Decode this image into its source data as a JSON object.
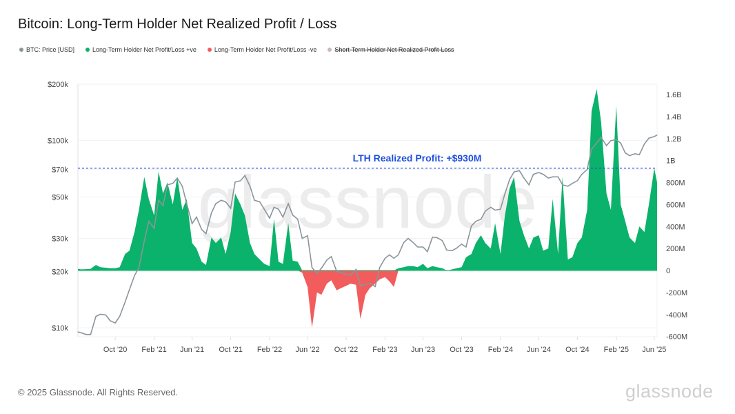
{
  "title": "Bitcoin: Long-Term Holder Net Realized Profit / Loss",
  "legend": [
    {
      "label": "BTC: Price [USD]",
      "color": "#8a959b",
      "disabled": false
    },
    {
      "label": "Long-Term Holder Net Profit/Loss +ve",
      "color": "#0bb26b",
      "disabled": false
    },
    {
      "label": "Long-Term Holder Net Profit/Loss -ve",
      "color": "#f25c5c",
      "disabled": false
    },
    {
      "label": "Short-Term Holder Net Realized Profit-Loss",
      "color": "#c9b8c0",
      "disabled": true
    }
  ],
  "footer": "© 2025 Glassnode. All Rights Reserved.",
  "logo": "glassnode",
  "watermark": "glassnode",
  "chart_data": {
    "type": "line+area",
    "title": "Bitcoin: Long-Term Holder Net Realized Profit / Loss",
    "annotation": {
      "text": "LTH Realized Profit: +$930M",
      "value": 930000000,
      "color": "#1f4fe0"
    },
    "x_ticks": [
      "Oct '20",
      "Feb '21",
      "Jun '21",
      "Oct '21",
      "Feb '22",
      "Jun '22",
      "Oct '22",
      "Feb '23",
      "Jun '23",
      "Oct '23",
      "Feb '24",
      "Jun '24",
      "Oct '24",
      "Feb '25",
      "Jun '25"
    ],
    "x_tick_dates": [
      "2020-10-01",
      "2021-02-01",
      "2021-06-01",
      "2021-10-01",
      "2022-02-01",
      "2022-06-01",
      "2022-10-01",
      "2023-02-01",
      "2023-06-01",
      "2023-10-01",
      "2024-02-01",
      "2024-06-01",
      "2024-10-01",
      "2025-02-01",
      "2025-06-01"
    ],
    "xlim": [
      "2020-06-05",
      "2025-06-10"
    ],
    "y_left": {
      "scale": "log",
      "ylim": [
        9500,
        200000
      ],
      "ticks": [
        10000,
        20000,
        30000,
        50000,
        70000,
        100000,
        200000
      ],
      "tick_labels": [
        "$10k",
        "$20k",
        "$30k",
        "$50k",
        "$70k",
        "$100k",
        "$200k"
      ]
    },
    "y_right": {
      "scale": "linear",
      "ylim": [
        -600000000,
        1650000000
      ],
      "ticks": [
        -600000000,
        -400000000,
        -200000000,
        0,
        200000000,
        400000000,
        600000000,
        800000000,
        1000000000,
        1200000000,
        1400000000,
        1600000000
      ],
      "tick_labels": [
        "-600M",
        "-400M",
        "-200M",
        "0",
        "200M",
        "400M",
        "600M",
        "800M",
        "1B",
        "1.2B",
        "1.4B",
        "1.6B"
      ]
    },
    "grid": true,
    "dates": [
      "2020-06-05",
      "2020-06-15",
      "2020-07-01",
      "2020-07-15",
      "2020-08-01",
      "2020-08-15",
      "2020-09-01",
      "2020-09-15",
      "2020-10-01",
      "2020-10-15",
      "2020-11-01",
      "2020-11-15",
      "2020-12-01",
      "2020-12-15",
      "2021-01-01",
      "2021-01-15",
      "2021-02-01",
      "2021-02-15",
      "2021-03-01",
      "2021-03-15",
      "2021-04-01",
      "2021-04-15",
      "2021-05-01",
      "2021-05-15",
      "2021-06-01",
      "2021-06-15",
      "2021-07-01",
      "2021-07-15",
      "2021-08-01",
      "2021-08-15",
      "2021-09-01",
      "2021-09-15",
      "2021-10-01",
      "2021-10-15",
      "2021-11-01",
      "2021-11-15",
      "2021-12-01",
      "2021-12-15",
      "2022-01-01",
      "2022-01-15",
      "2022-02-01",
      "2022-02-15",
      "2022-03-01",
      "2022-03-15",
      "2022-04-01",
      "2022-04-15",
      "2022-05-01",
      "2022-05-15",
      "2022-06-01",
      "2022-06-15",
      "2022-07-01",
      "2022-07-15",
      "2022-08-01",
      "2022-08-15",
      "2022-09-01",
      "2022-09-15",
      "2022-10-01",
      "2022-10-15",
      "2022-11-01",
      "2022-11-15",
      "2022-12-01",
      "2022-12-15",
      "2023-01-01",
      "2023-01-15",
      "2023-02-01",
      "2023-02-15",
      "2023-03-01",
      "2023-03-15",
      "2023-04-01",
      "2023-04-15",
      "2023-05-01",
      "2023-05-15",
      "2023-06-01",
      "2023-06-15",
      "2023-07-01",
      "2023-07-15",
      "2023-08-01",
      "2023-08-15",
      "2023-09-01",
      "2023-09-15",
      "2023-10-01",
      "2023-10-15",
      "2023-11-01",
      "2023-11-15",
      "2023-12-01",
      "2023-12-15",
      "2024-01-01",
      "2024-01-15",
      "2024-02-01",
      "2024-02-15",
      "2024-03-01",
      "2024-03-15",
      "2024-04-01",
      "2024-04-15",
      "2024-05-01",
      "2024-05-15",
      "2024-06-01",
      "2024-06-15",
      "2024-07-01",
      "2024-07-15",
      "2024-08-01",
      "2024-08-15",
      "2024-09-01",
      "2024-09-15",
      "2024-10-01",
      "2024-10-15",
      "2024-11-01",
      "2024-11-15",
      "2024-12-01",
      "2024-12-15",
      "2025-01-01",
      "2025-01-15",
      "2025-02-01",
      "2025-02-15",
      "2025-03-01",
      "2025-03-15",
      "2025-04-01",
      "2025-04-15",
      "2025-05-01",
      "2025-05-15",
      "2025-06-01",
      "2025-06-10"
    ],
    "series": [
      {
        "name": "BTC: Price [USD]",
        "axis": "left",
        "color": "#8a959b",
        "values": [
          9500,
          9400,
          9200,
          9200,
          11500,
          11800,
          11700,
          10900,
          10600,
          11500,
          13700,
          16000,
          19000,
          21000,
          29000,
          37000,
          34000,
          48000,
          45000,
          58000,
          59000,
          63000,
          57000,
          46000,
          36000,
          39000,
          33500,
          31800,
          41000,
          46000,
          48000,
          47000,
          43500,
          60000,
          61000,
          65000,
          57000,
          48000,
          47000,
          43000,
          38500,
          44000,
          43000,
          39000,
          46000,
          40000,
          38000,
          30000,
          31000,
          21000,
          19500,
          20800,
          23000,
          24000,
          20000,
          19700,
          19300,
          19100,
          20500,
          16800,
          17000,
          17300,
          16600,
          21000,
          23500,
          24500,
          23500,
          24500,
          28500,
          30000,
          28500,
          27000,
          27000,
          25500,
          30500,
          30300,
          29200,
          26000,
          25800,
          26600,
          28000,
          27000,
          35000,
          37000,
          38000,
          42000,
          44000,
          42500,
          43000,
          52000,
          62000,
          68000,
          69000,
          63000,
          58000,
          66000,
          67500,
          66000,
          63000,
          64000,
          64000,
          58000,
          57000,
          59000,
          61000,
          66000,
          70000,
          90000,
          97000,
          104000,
          94000,
          100000,
          101000,
          97000,
          86000,
          83000,
          85000,
          84000,
          96000,
          103000,
          105000,
          107000
        ]
      },
      {
        "name": "Long-Term Holder Net Profit/Loss",
        "axis": "right",
        "unit": "USD",
        "color_pos": "#0bb26b",
        "color_neg": "#f25c5c",
        "values": [
          15000000,
          10000000,
          12000000,
          15000000,
          50000000,
          30000000,
          25000000,
          20000000,
          20000000,
          30000000,
          150000000,
          180000000,
          350000000,
          550000000,
          850000000,
          650000000,
          500000000,
          900000000,
          700000000,
          800000000,
          600000000,
          850000000,
          550000000,
          650000000,
          250000000,
          200000000,
          80000000,
          50000000,
          300000000,
          250000000,
          300000000,
          150000000,
          350000000,
          700000000,
          600000000,
          500000000,
          250000000,
          150000000,
          100000000,
          60000000,
          40000000,
          470000000,
          80000000,
          60000000,
          430000000,
          90000000,
          80000000,
          -20000000,
          -150000000,
          -520000000,
          -200000000,
          -220000000,
          -120000000,
          -90000000,
          -180000000,
          -160000000,
          -140000000,
          -120000000,
          -130000000,
          -440000000,
          -220000000,
          -160000000,
          -120000000,
          -80000000,
          -60000000,
          -100000000,
          -150000000,
          20000000,
          30000000,
          40000000,
          40000000,
          30000000,
          60000000,
          20000000,
          40000000,
          30000000,
          20000000,
          -5000000,
          10000000,
          20000000,
          30000000,
          120000000,
          150000000,
          250000000,
          320000000,
          250000000,
          200000000,
          430000000,
          150000000,
          500000000,
          750000000,
          850000000,
          450000000,
          320000000,
          200000000,
          300000000,
          320000000,
          180000000,
          200000000,
          650000000,
          150000000,
          850000000,
          100000000,
          120000000,
          250000000,
          300000000,
          550000000,
          1450000000,
          1650000000,
          1350000000,
          700000000,
          550000000,
          1500000000,
          600000000,
          450000000,
          300000000,
          250000000,
          400000000,
          350000000,
          600000000,
          930000000,
          800000000
        ]
      }
    ]
  }
}
